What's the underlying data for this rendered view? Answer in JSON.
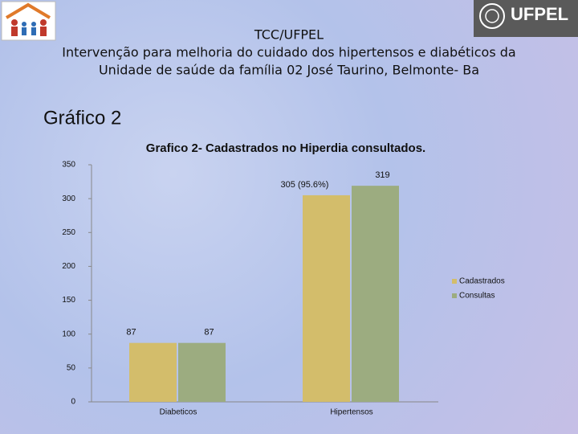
{
  "header": {
    "line1": "TCC/UFPEL",
    "line2": "Intervenção para melhoria do cuidado dos hipertensos e diabéticos da",
    "line3": "Unidade de saúde da família 02 José Taurino,  Belmonte- Ba",
    "logo_text": "UFPEL"
  },
  "slide_title": "Gráfico 2",
  "chart_data": {
    "type": "bar",
    "title": "Grafico 2- Cadastrados no Hiperdia consultados.",
    "categories": [
      "Diabeticos",
      "Hipertensos"
    ],
    "series": [
      {
        "name": "Cadastrados",
        "color": "#d3bd6b",
        "values": [
          87,
          305
        ],
        "value_labels": [
          "87",
          "305 (95.6%)"
        ]
      },
      {
        "name": "Consultas",
        "color": "#9cac80",
        "values": [
          87,
          319
        ]
      }
    ],
    "ylim": [
      0,
      350
    ],
    "yticks": [
      0,
      50,
      100,
      150,
      200,
      250,
      300,
      350
    ],
    "legend": "right"
  }
}
